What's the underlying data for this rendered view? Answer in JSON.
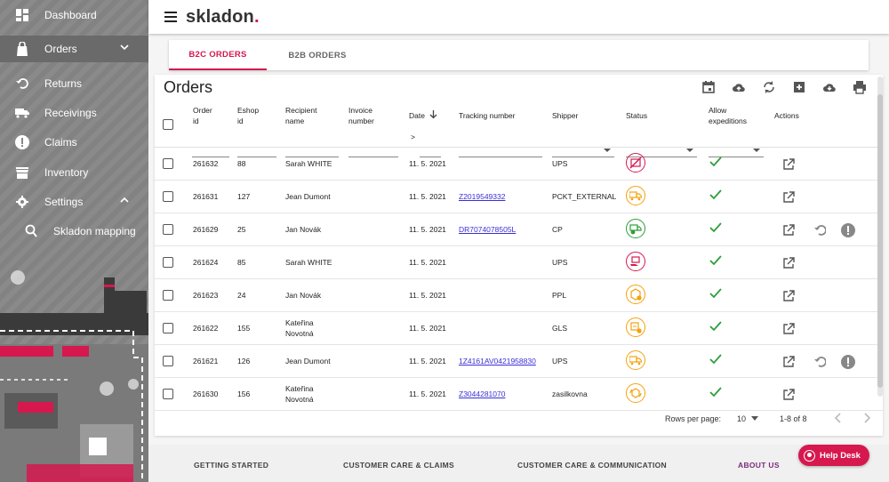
{
  "app": {
    "logo_text": "skladon",
    "logo_dot": "."
  },
  "colors": {
    "accent": "#d6184f",
    "link": "#3a2fd6",
    "check": "#2e9e3a",
    "warning": "#f4a20e"
  },
  "sidebar": {
    "items": [
      {
        "label": "Dashboard",
        "icon": "dashboard-icon"
      },
      {
        "label": "Orders",
        "icon": "bag-icon",
        "expanded": true
      },
      {
        "label": "Returns",
        "icon": "returns-icon"
      },
      {
        "label": "Receivings",
        "icon": "truck-icon"
      },
      {
        "label": "Claims",
        "icon": "exclamation-icon"
      },
      {
        "label": "Inventory",
        "icon": "store-icon"
      },
      {
        "label": "Settings",
        "icon": "gear-icon",
        "expanded": true
      },
      {
        "label": "Skladon mapping",
        "icon": "map-pin-icon"
      }
    ]
  },
  "tabs": [
    {
      "label": "B2C ORDERS",
      "active": true
    },
    {
      "label": "B2B ORDERS",
      "active": false
    }
  ],
  "orders": {
    "title": "Orders",
    "toolbar": [
      "calendar-icon",
      "cloud-upload-icon",
      "refresh-icon",
      "add-box-icon",
      "cloud-download-icon",
      "print-icon"
    ],
    "columns": {
      "order_id": [
        "Order",
        "id"
      ],
      "eshop_id": [
        "Eshop",
        "id"
      ],
      "recipient": [
        "Recipient",
        "name"
      ],
      "invoice": [
        "Invoice",
        "number"
      ],
      "date": "Date",
      "tracking": "Tracking number",
      "shipper": "Shipper",
      "status": "Status",
      "allow": [
        "Allow",
        "expeditions"
      ],
      "actions": "Actions"
    },
    "date_filter_prefix": ">",
    "rows": [
      {
        "order_id": "261632",
        "eshop_id": "88",
        "recipient": [
          "Sarah WHITE"
        ],
        "date": "11. 5. 2021",
        "tracking": "",
        "shipper": "UPS",
        "status": "red-cancel",
        "extra_actions": false
      },
      {
        "order_id": "261631",
        "eshop_id": "127",
        "recipient": [
          "Jean Dumont"
        ],
        "date": "11. 5. 2021",
        "tracking": "Z2019549332",
        "shipper": "PCKT_EXTERNAL",
        "status": "orange-truck",
        "extra_actions": false
      },
      {
        "order_id": "261629",
        "eshop_id": "25",
        "recipient": [
          "Jan Novák"
        ],
        "date": "11. 5. 2021",
        "tracking": "DR7074078505L",
        "shipper": "CP",
        "status": "green-delivered",
        "extra_actions": true
      },
      {
        "order_id": "261624",
        "eshop_id": "85",
        "recipient": [
          "Sarah WHITE"
        ],
        "date": "11. 5. 2021",
        "tracking": "",
        "shipper": "UPS",
        "status": "red-hand",
        "extra_actions": false
      },
      {
        "order_id": "261623",
        "eshop_id": "24",
        "recipient": [
          "Jan Novák"
        ],
        "date": "11. 5. 2021",
        "tracking": "",
        "shipper": "PPL",
        "status": "orange-box",
        "extra_actions": false
      },
      {
        "order_id": "261622",
        "eshop_id": "155",
        "recipient": [
          "Kateřina",
          "Novotná"
        ],
        "date": "11. 5. 2021",
        "tracking": "",
        "shipper": "GLS",
        "status": "orange-pack",
        "extra_actions": false
      },
      {
        "order_id": "261621",
        "eshop_id": "126",
        "recipient": [
          "Jean Dumont"
        ],
        "date": "11. 5. 2021",
        "tracking": "1Z4161AV0421958830",
        "shipper": "UPS",
        "status": "orange-truck",
        "extra_actions": true
      },
      {
        "order_id": "261630",
        "eshop_id": "156",
        "recipient": [
          "Kateřina",
          "Novotná"
        ],
        "date": "11. 5. 2021",
        "tracking": "Z3044281070",
        "shipper": "zasilkovna",
        "status": "orange-cycle",
        "extra_actions": false
      }
    ],
    "pagination": {
      "rows_per_page_label": "Rows per page:",
      "rows_per_page": "10",
      "range": "1-8 of 8"
    }
  },
  "footer": {
    "links": [
      "GETTING STARTED",
      "CUSTOMER CARE & CLAIMS",
      "CUSTOMER CARE & COMMUNICATION",
      "ABOUT US"
    ],
    "help_label": "Help Desk"
  }
}
